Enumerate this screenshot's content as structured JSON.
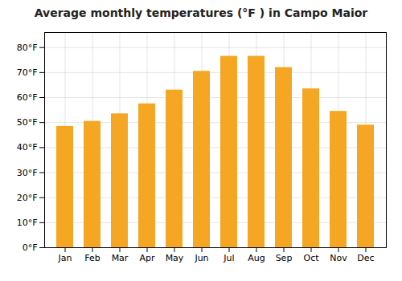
{
  "chart_data": {
    "type": "bar",
    "title": "Average monthly temperatures (°F ) in Campo Maior",
    "categories": [
      "Jan",
      "Feb",
      "Mar",
      "Apr",
      "May",
      "Jun",
      "Jul",
      "Aug",
      "Sep",
      "Oct",
      "Nov",
      "Dec"
    ],
    "values": [
      48.5,
      50.5,
      53.5,
      57.5,
      63.0,
      70.5,
      76.5,
      76.5,
      72.0,
      63.5,
      54.5,
      49.0
    ],
    "color": "#F5A623",
    "ylim": [
      0,
      86
    ],
    "yticks": [
      {
        "value": 0,
        "label": "0°F"
      },
      {
        "value": 10,
        "label": "10°F"
      },
      {
        "value": 20,
        "label": "20°F"
      },
      {
        "value": 30,
        "label": "30°F"
      },
      {
        "value": 40,
        "label": "40°F"
      },
      {
        "value": 50,
        "label": "50°F"
      },
      {
        "value": 60,
        "label": "60°F"
      },
      {
        "value": 70,
        "label": "70°F"
      },
      {
        "value": 80,
        "label": "80°F"
      }
    ],
    "grid": true
  }
}
